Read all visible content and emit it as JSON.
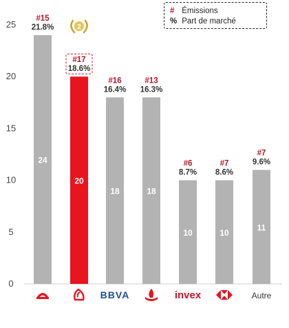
{
  "chart_data": {
    "type": "bar",
    "categories": [
      "Banorte",
      "Santander",
      "BBVA",
      "Santander",
      "invex",
      "HSBC",
      "Autre"
    ],
    "values": [
      24,
      20,
      18,
      18,
      10,
      10,
      11
    ],
    "ranks": [
      "#15",
      "#17",
      "#16",
      "#13",
      "#6",
      "#7",
      "#7"
    ],
    "shares": [
      "21.8%",
      "18.6%",
      "16.4%",
      "16.3%",
      "8.7%",
      "8.6%",
      "9.6%"
    ],
    "highlight_index": 1,
    "ylim": [
      0,
      25
    ],
    "yticks": [
      "0",
      "5",
      "10",
      "15",
      "20",
      "25"
    ],
    "highlight_badge": "2",
    "legend": [
      {
        "symbol": "#",
        "label": "Émissions"
      },
      {
        "symbol": "%",
        "label": "Part de marché"
      }
    ],
    "colors": {
      "bar": "#b3b3b3",
      "highlight": "#e8141e",
      "rank_text": "#b2182b",
      "bbva_blue": "#1d4f91"
    },
    "logos": [
      "banorte-logo",
      "santander-flame-logo",
      "bbva-logo",
      "santander-logo",
      "invex-logo",
      "hsbc-logo",
      "autre-label"
    ],
    "logo_text": {
      "bbva": "BBVA",
      "invex": "invex",
      "autre": "Autre"
    }
  }
}
